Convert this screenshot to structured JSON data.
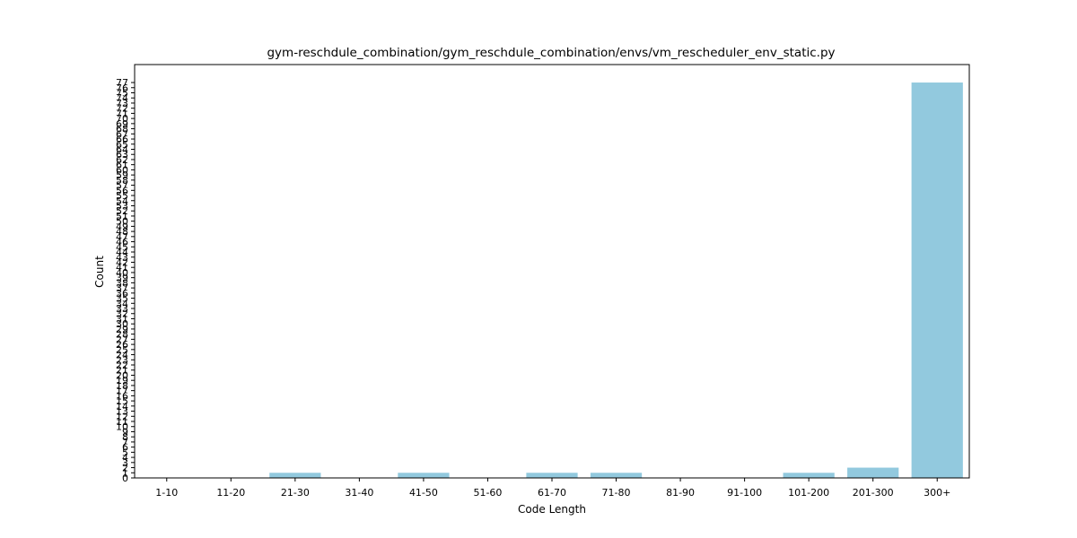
{
  "chart_data": {
    "type": "bar",
    "title": "gym-reschdule_combination/gym_reschdule_combination/envs/vm_rescheduler_env_static.py",
    "xlabel": "Code Length",
    "ylabel": "Count",
    "categories": [
      "1-10",
      "11-20",
      "21-30",
      "31-40",
      "41-50",
      "51-60",
      "61-70",
      "71-80",
      "81-90",
      "91-100",
      "101-200",
      "201-300",
      "300+"
    ],
    "values": [
      0,
      0,
      1,
      0,
      1,
      0,
      1,
      1,
      0,
      0,
      1,
      2,
      77
    ],
    "ylim": [
      0,
      77
    ],
    "yticks": [
      0,
      1,
      2,
      3,
      4,
      5,
      6,
      7,
      8,
      9,
      10,
      11,
      12,
      13,
      14,
      15,
      16,
      17,
      18,
      19,
      20,
      21,
      22,
      23,
      24,
      25,
      26,
      27,
      28,
      29,
      30,
      31,
      32,
      33,
      34,
      35,
      36,
      37,
      38,
      39,
      40,
      41,
      42,
      43,
      44,
      45,
      46,
      47,
      48,
      49,
      50,
      51,
      52,
      53,
      54,
      55,
      56,
      57,
      58,
      59,
      60,
      61,
      62,
      63,
      64,
      65,
      66,
      67,
      68,
      69,
      70,
      71,
      72,
      73,
      74,
      75,
      76,
      77
    ],
    "bar_color": "#92c9de",
    "grid": false,
    "legend": "none"
  }
}
